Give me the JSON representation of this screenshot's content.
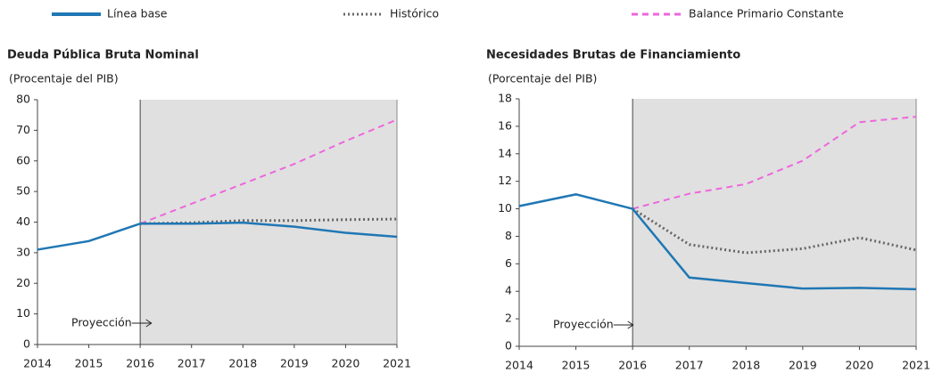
{
  "chart_data": [
    {
      "type": "line",
      "title": "Deuda Pública Bruta Nominal",
      "subtitle": "(Procentaje del PIB)",
      "annotation": "Proyección",
      "projection_start": 2016,
      "x": [
        2014,
        2015,
        2016,
        2017,
        2018,
        2019,
        2020,
        2021
      ],
      "xlim": [
        2014,
        2021
      ],
      "xticks": [
        2014,
        2015,
        2016,
        2017,
        2018,
        2019,
        2020,
        2021
      ],
      "ylim": [
        0,
        80
      ],
      "yticks": [
        0,
        10,
        20,
        30,
        40,
        50,
        60,
        70,
        80
      ],
      "series": [
        {
          "name": "Línea base",
          "color": "#1f77b4",
          "style": "solid",
          "values": [
            31,
            33.8,
            39.5,
            39.5,
            39.8,
            38.5,
            36.5,
            35.2
          ]
        },
        {
          "name": "Histórico",
          "color": "#666666",
          "style": "dotted",
          "values": [
            null,
            null,
            39.5,
            39.8,
            40.5,
            40.5,
            40.8,
            41
          ]
        },
        {
          "name": "Balance Primario Constante",
          "color": "#ee66dd",
          "style": "dashed",
          "values": [
            null,
            null,
            39.5,
            46,
            52.5,
            59,
            66.5,
            73.5
          ]
        }
      ]
    },
    {
      "type": "line",
      "title": "Necesidades Brutas de Financiamiento",
      "subtitle": "(Porcentaje del PIB)",
      "annotation": "Proyección",
      "projection_start": 2016,
      "x": [
        2014,
        2015,
        2016,
        2017,
        2018,
        2019,
        2020,
        2021
      ],
      "xlim": [
        2014,
        2021
      ],
      "xticks": [
        2014,
        2015,
        2016,
        2017,
        2018,
        2019,
        2020,
        2021
      ],
      "ylim": [
        0,
        18
      ],
      "yticks": [
        0,
        2,
        4,
        6,
        8,
        10,
        12,
        14,
        16,
        18
      ],
      "series": [
        {
          "color": "#1f77b4",
          "style": "solid",
          "values": [
            10.2,
            11.05,
            10.0,
            5.0,
            4.6,
            4.2,
            4.25,
            4.15
          ]
        },
        {
          "color": "#666666",
          "style": "dotted",
          "values": [
            null,
            null,
            10.0,
            7.4,
            6.8,
            7.1,
            7.9,
            7.0
          ]
        },
        {
          "color": "#ee66dd",
          "style": "dashed",
          "values": [
            null,
            null,
            10.0,
            11.1,
            11.8,
            13.5,
            16.3,
            16.7
          ]
        }
      ]
    }
  ]
}
